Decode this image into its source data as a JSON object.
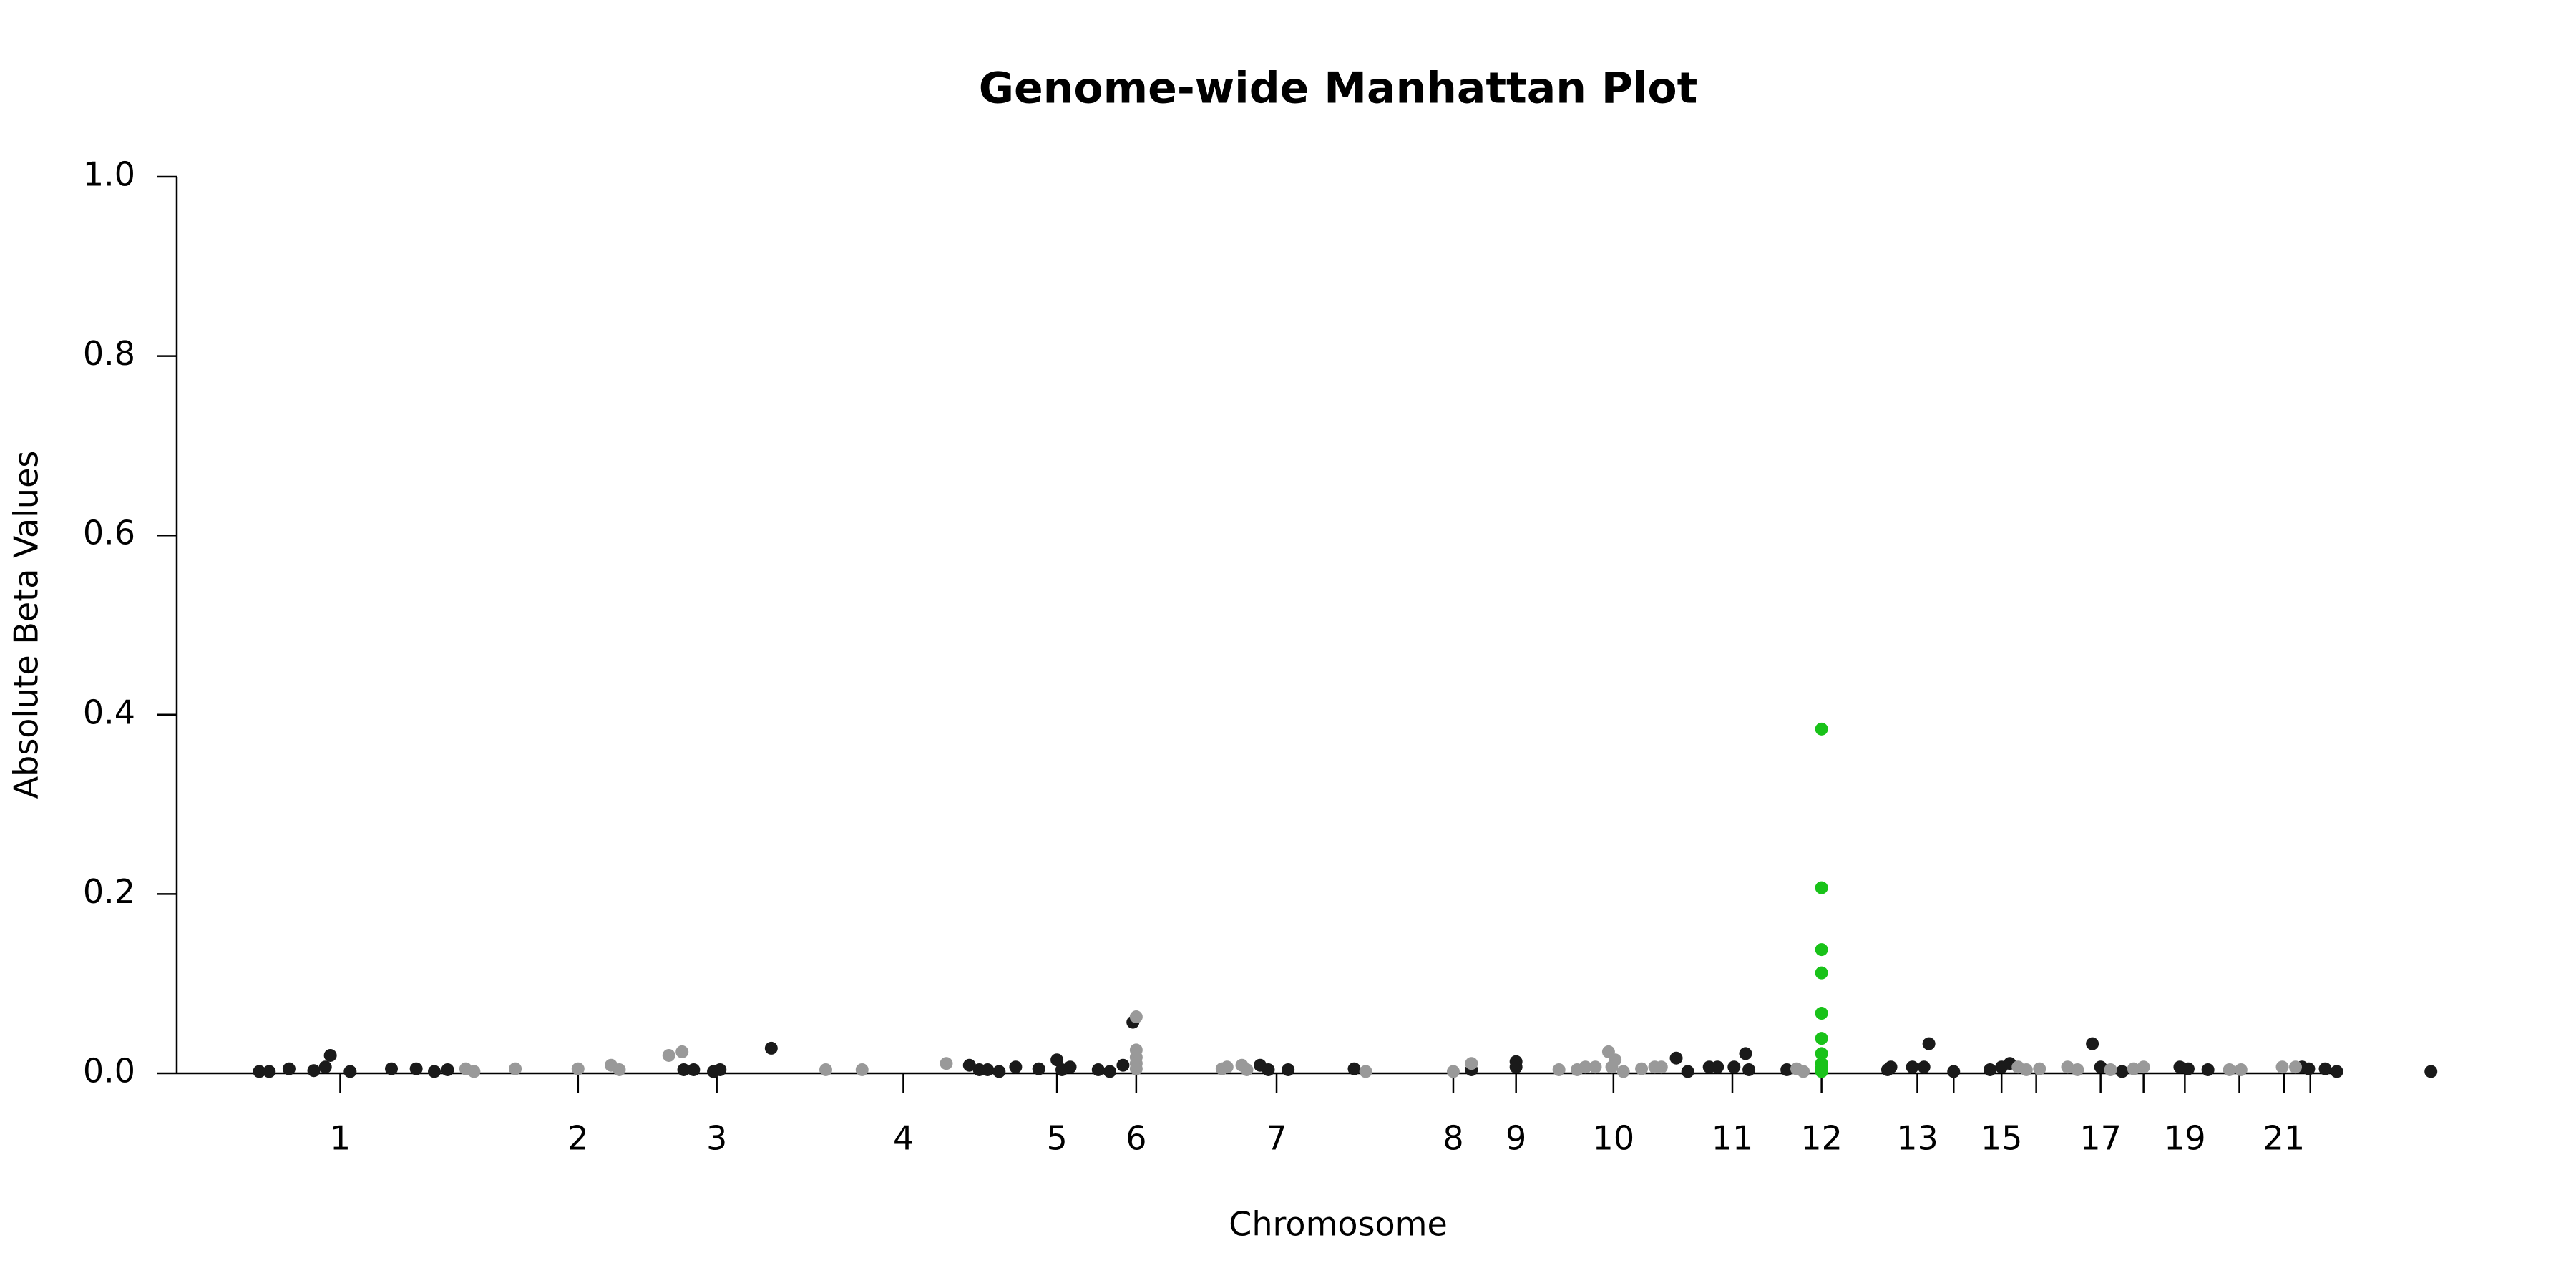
{
  "chart_data": {
    "type": "scatter",
    "title": "Genome-wide Manhattan Plot",
    "x_label": "Chromosome",
    "y_label": "Absolute Beta Values",
    "xlim": [
      0,
      1400
    ],
    "ylim": [
      0,
      1
    ],
    "yticks": [
      {
        "value": 0,
        "label": "0.0"
      },
      {
        "value": 0.2,
        "label": "0.2"
      },
      {
        "value": 0.4,
        "label": "0.4"
      },
      {
        "value": 0.6,
        "label": "0.6"
      },
      {
        "value": 0.8,
        "label": "0.8"
      },
      {
        "value": 1,
        "label": "1.0"
      }
    ],
    "xticks": [
      99,
      243,
      327,
      440,
      533,
      581,
      666,
      773,
      811,
      870,
      942,
      996,
      1054,
      1076,
      1105,
      1126,
      1165,
      1191,
      1216,
      1249,
      1276,
      1292
    ],
    "xticklabels": [
      "1",
      "2",
      "3",
      "4",
      "5",
      "6",
      "7",
      "8",
      "9",
      "10",
      "11",
      "12",
      "13",
      null,
      "15",
      null,
      "17",
      null,
      "19",
      null,
      "21",
      null
    ],
    "series": [
      {
        "color": "#1a1a1a",
        "x": [
          50,
          56,
          68,
          83,
          90,
          93,
          105,
          130,
          145,
          156,
          164,
          307,
          313,
          325,
          329,
          360,
          480,
          486,
          491,
          498,
          508,
          522,
          533,
          536,
          541,
          558,
          565,
          573,
          579,
          656,
          661,
          673,
          713,
          784,
          811,
          811,
          908,
          915,
          928,
          933,
          943,
          950,
          952,
          975,
          1036,
          1038,
          1051,
          1058,
          1061,
          1076,
          1098,
          1105,
          1110,
          1160,
          1165,
          1178,
          1213,
          1218,
          1230,
          1287,
          1291,
          1301,
          1308,
          1365
        ],
        "values": [
          0.002,
          0.002,
          0.005,
          0.003,
          0.007,
          0.02,
          0.002,
          0.005,
          0.005,
          0.002,
          0.004,
          0.004,
          0.004,
          0.002,
          0.004,
          0.028,
          0.009,
          0.004,
          0.004,
          0.002,
          0.007,
          0.005,
          0.015,
          0.004,
          0.007,
          0.004,
          0.002,
          0.009,
          0.057,
          0.009,
          0.004,
          0.004,
          0.005,
          0.004,
          0.013,
          0.007,
          0.017,
          0.002,
          0.007,
          0.007,
          0.007,
          0.022,
          0.004,
          0.004,
          0.004,
          0.007,
          0.007,
          0.007,
          0.033,
          0.002,
          0.004,
          0.007,
          0.011,
          0.033,
          0.007,
          0.002,
          0.007,
          0.005,
          0.004,
          0.007,
          0.005,
          0.005,
          0.002,
          0.002
        ]
      },
      {
        "color": "#999999",
        "x": [
          175,
          180,
          205,
          243,
          263,
          268,
          298,
          306,
          393,
          415,
          466,
          581,
          581,
          581,
          581,
          581,
          633,
          636,
          645,
          648,
          720,
          773,
          784,
          837,
          848,
          853,
          859,
          867,
          871,
          869,
          876,
          887,
          895,
          899,
          981,
          985,
          1115,
          1120,
          1128,
          1145,
          1151,
          1171,
          1185,
          1191,
          1243,
          1250,
          1275,
          1283
        ],
        "values": [
          0.005,
          0.002,
          0.005,
          0.005,
          0.009,
          0.004,
          0.02,
          0.024,
          0.004,
          0.004,
          0.011,
          0.063,
          0.026,
          0.018,
          0.011,
          0.005,
          0.005,
          0.007,
          0.009,
          0.004,
          0.002,
          0.002,
          0.011,
          0.004,
          0.004,
          0.007,
          0.007,
          0.024,
          0.015,
          0.007,
          0.002,
          0.005,
          0.007,
          0.007,
          0.005,
          0.002,
          0.007,
          0.004,
          0.005,
          0.007,
          0.004,
          0.004,
          0.005,
          0.007,
          0.004,
          0.004,
          0.007,
          0.007
        ]
      },
      {
        "color": "#19c219",
        "x": [
          996,
          996,
          996,
          996,
          996,
          996,
          996,
          996,
          996,
          996
        ],
        "values": [
          0.384,
          0.207,
          0.138,
          0.112,
          0.067,
          0.039,
          0.022,
          0.011,
          0.006,
          0.002
        ]
      }
    ]
  }
}
